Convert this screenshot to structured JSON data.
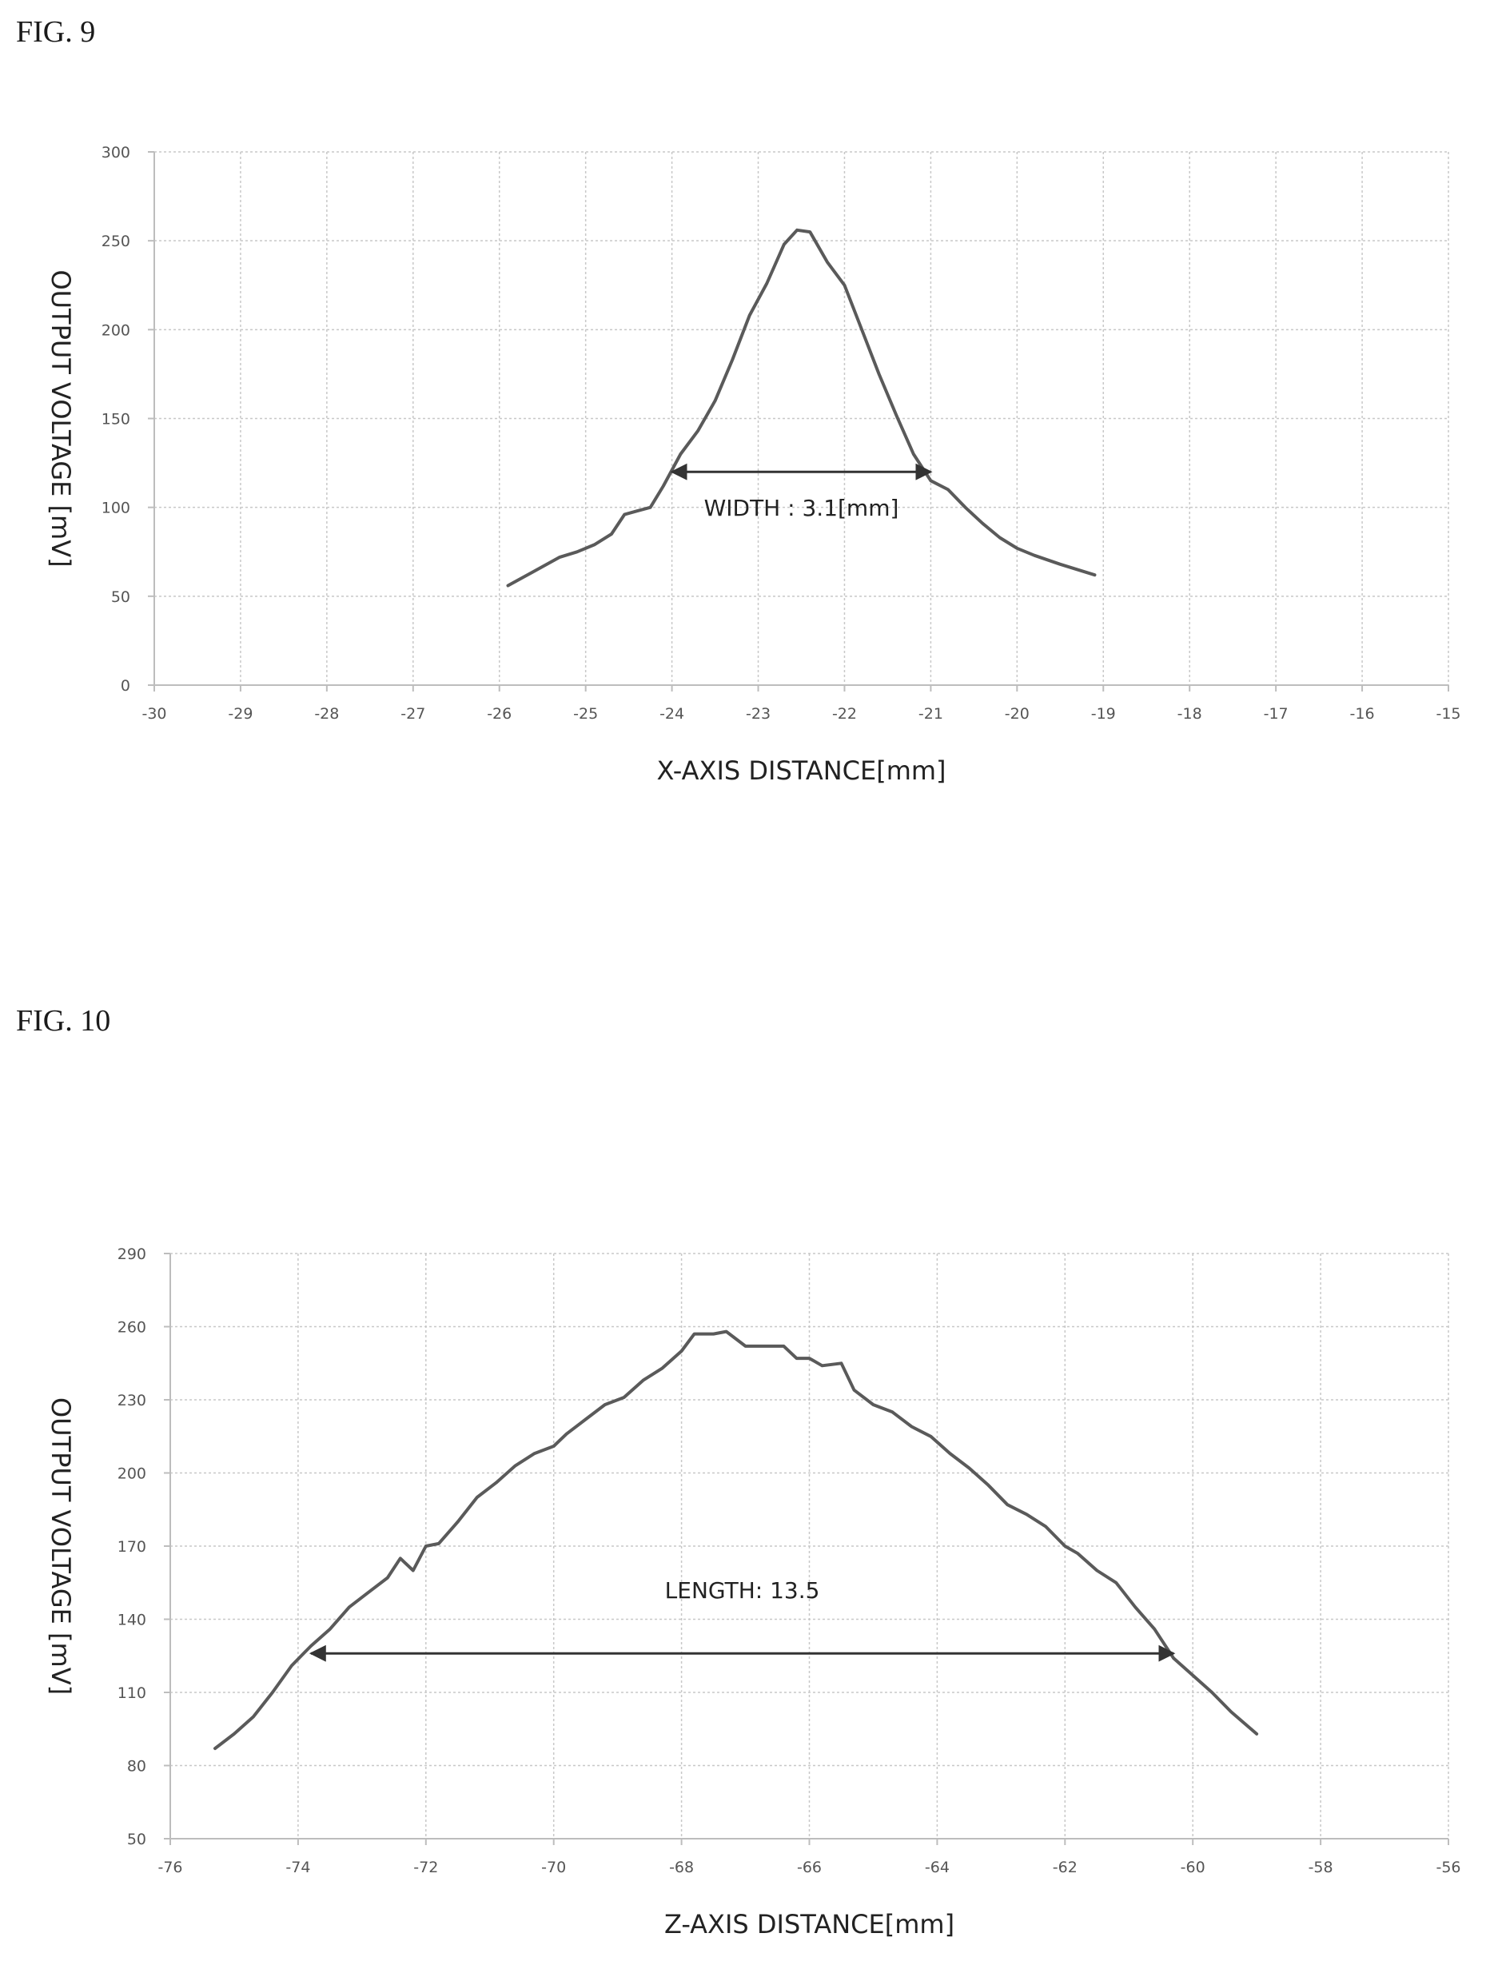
{
  "figures": [
    {
      "label": "FIG. 9"
    },
    {
      "label": "FIG. 10"
    }
  ],
  "chart_data": [
    {
      "type": "line",
      "xlabel": "X-AXIS DISTANCE[mm]",
      "ylabel": "OUTPUT VOLTAGE [mV]",
      "xlim": [
        -30,
        -15
      ],
      "ylim": [
        0,
        300
      ],
      "xticks": [
        -30,
        -29,
        -28,
        -27,
        -26,
        -25,
        -24,
        -23,
        -22,
        -21,
        -20,
        -19,
        -18,
        -17,
        -16,
        -15
      ],
      "yticks": [
        0,
        50,
        100,
        150,
        200,
        250,
        300
      ],
      "grid": true,
      "line_color": "#5a5a5a",
      "series": [
        {
          "x": [
            -25.9,
            -25.6,
            -25.3,
            -25.1,
            -24.9,
            -24.7,
            -24.55,
            -24.4,
            -24.25,
            -24.1,
            -23.9,
            -23.7,
            -23.5,
            -23.3,
            -23.1,
            -22.9,
            -22.7,
            -22.55,
            -22.4,
            -22.2,
            -22.0,
            -21.8,
            -21.6,
            -21.4,
            -21.2,
            -21.0,
            -20.8,
            -20.6,
            -20.4,
            -20.2,
            -20.0,
            -19.8,
            -19.5,
            -19.1
          ],
          "y": [
            56,
            64,
            72,
            75,
            79,
            85,
            96,
            98,
            100,
            112,
            130,
            143,
            160,
            183,
            208,
            226,
            248,
            256,
            255,
            238,
            225,
            200,
            175,
            152,
            130,
            115,
            110,
            100,
            91,
            83,
            77,
            73,
            68,
            62
          ]
        }
      ],
      "annotation": {
        "text": "WIDTH : 3.1[mm]",
        "x_start": -24.0,
        "x_end": -21.0,
        "y": 120
      }
    },
    {
      "type": "line",
      "xlabel": "Z-AXIS DISTANCE[mm]",
      "ylabel": "OUTPUT VOLTAGE [mV]",
      "xlim": [
        -76,
        -56
      ],
      "ylim": [
        50,
        290
      ],
      "xticks": [
        -76,
        -74,
        -72,
        -70,
        -68,
        -66,
        -64,
        -62,
        -60,
        -58,
        -56
      ],
      "yticks": [
        50,
        80,
        110,
        140,
        170,
        200,
        230,
        260,
        290
      ],
      "grid": true,
      "line_color": "#5a5a5a",
      "series": [
        {
          "x": [
            -75.3,
            -75.0,
            -74.7,
            -74.4,
            -74.1,
            -73.8,
            -73.5,
            -73.2,
            -72.9,
            -72.6,
            -72.4,
            -72.2,
            -72.0,
            -71.8,
            -71.5,
            -71.2,
            -70.9,
            -70.6,
            -70.3,
            -70.0,
            -69.8,
            -69.5,
            -69.2,
            -68.9,
            -68.6,
            -68.3,
            -68.0,
            -67.8,
            -67.5,
            -67.3,
            -67.0,
            -66.7,
            -66.4,
            -66.2,
            -66.0,
            -65.8,
            -65.5,
            -65.3,
            -65.0,
            -64.7,
            -64.4,
            -64.1,
            -63.8,
            -63.5,
            -63.2,
            -62.9,
            -62.6,
            -62.3,
            -62.0,
            -61.8,
            -61.5,
            -61.2,
            -60.9,
            -60.6,
            -60.3,
            -60.0,
            -59.7,
            -59.4,
            -59.0
          ],
          "y": [
            87,
            93,
            100,
            110,
            121,
            129,
            136,
            145,
            151,
            157,
            165,
            160,
            170,
            171,
            180,
            190,
            196,
            203,
            208,
            211,
            216,
            222,
            228,
            231,
            238,
            243,
            250,
            257,
            257,
            258,
            252,
            252,
            252,
            247,
            247,
            244,
            245,
            234,
            228,
            225,
            219,
            215,
            208,
            202,
            195,
            187,
            183,
            178,
            170,
            167,
            160,
            155,
            145,
            136,
            124,
            117,
            110,
            102,
            93
          ]
        }
      ],
      "annotation": {
        "text": "LENGTH: 13.5",
        "x_start": -73.8,
        "x_end": -60.3,
        "y": 126
      }
    }
  ]
}
